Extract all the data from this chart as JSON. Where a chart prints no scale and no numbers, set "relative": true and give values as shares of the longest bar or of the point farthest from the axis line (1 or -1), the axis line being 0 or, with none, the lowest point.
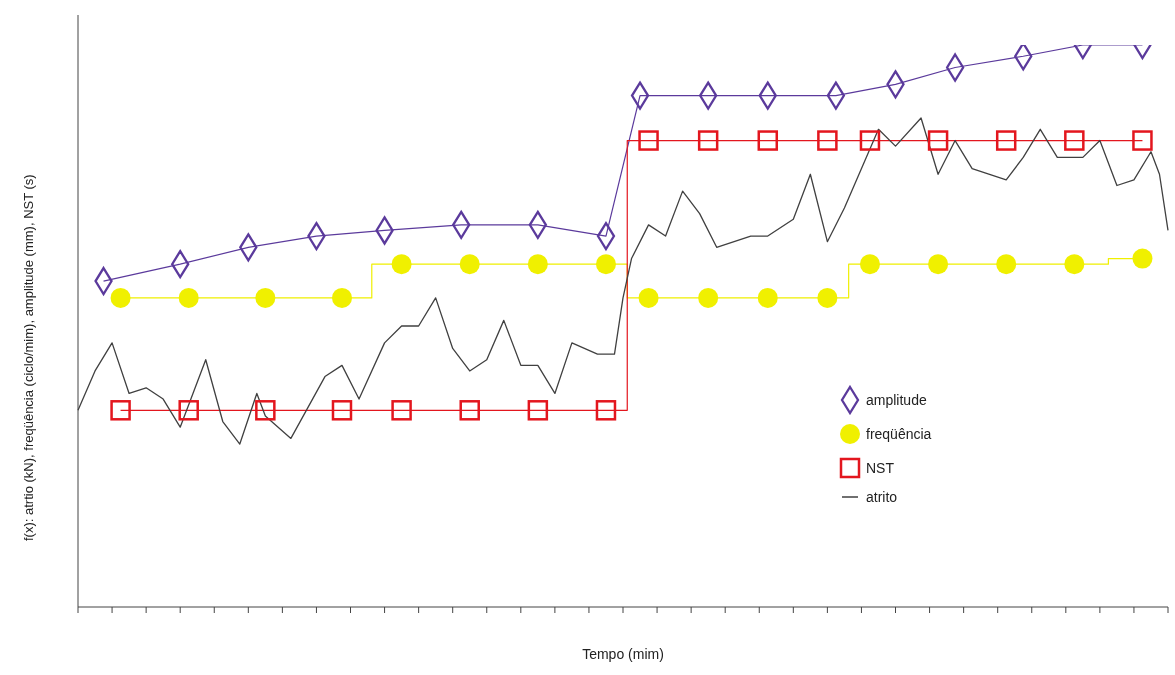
{
  "chart_data": {
    "type": "line",
    "relative": true,
    "xlabel": "Tempo (mim)",
    "ylabel": "f(x): atrtio (kN), freqüência (ciclo/mim), amplitude (mm), NST (s)",
    "legend": "right",
    "categories": [
      null,
      null,
      null,
      null,
      null,
      null,
      null,
      null,
      null,
      null,
      null,
      null,
      null,
      null,
      null,
      null,
      null,
      null,
      null,
      null,
      null,
      null,
      null,
      null,
      null,
      null,
      null,
      null,
      null,
      null,
      null,
      null,
      null,
      null,
      null,
      null,
      null,
      null,
      null,
      null,
      null,
      null,
      null,
      null,
      null,
      null,
      null,
      null,
      null,
      null,
      null,
      null,
      null,
      null,
      null,
      null,
      null,
      null,
      null,
      null,
      null,
      null,
      null,
      null,
      null,
      null,
      null,
      null,
      null,
      null,
      null,
      null,
      null,
      null,
      null,
      null,
      null,
      null,
      null,
      null,
      null,
      null,
      null,
      null,
      null,
      null,
      null,
      null,
      null,
      null,
      null,
      null,
      null,
      null,
      null,
      null,
      null,
      null,
      null,
      null,
      null,
      null,
      null,
      null,
      null,
      null,
      null,
      null,
      null,
      null,
      null,
      null,
      null,
      null,
      null,
      null,
      null,
      null,
      null,
      null,
      null,
      null,
      null,
      null,
      null,
      null,
      null,
      null,
      null
    ],
    "series": [
      {
        "name": "amplitude",
        "type": "line",
        "marker": "diamond",
        "color": "#5b3a9c",
        "values": [
          null,
          null,
          null,
          0.58,
          null,
          null,
          null,
          null,
          null,
          null,
          null,
          null,
          0.61,
          null,
          null,
          null,
          null,
          null,
          null,
          null,
          0.64,
          null,
          null,
          null,
          null,
          null,
          null,
          null,
          0.66,
          null,
          null,
          null,
          null,
          null,
          null,
          null,
          0.67,
          null,
          null,
          null,
          null,
          null,
          null,
          null,
          null,
          0.68,
          null,
          null,
          null,
          null,
          null,
          null,
          null,
          null,
          0.68,
          null,
          null,
          null,
          null,
          null,
          null,
          null,
          0.66,
          null,
          null,
          null,
          0.91,
          null,
          null,
          null,
          null,
          null,
          null,
          null,
          0.91,
          null,
          null,
          null,
          null,
          null,
          null,
          0.91,
          null,
          null,
          null,
          null,
          null,
          null,
          null,
          0.91,
          null,
          null,
          null,
          null,
          null,
          null,
          0.93,
          null,
          null,
          null,
          null,
          null,
          null,
          0.96,
          null,
          null,
          null,
          null,
          null,
          null,
          null,
          0.98,
          null,
          null,
          null,
          null,
          null,
          null,
          1,
          null,
          null,
          null,
          null,
          null,
          null,
          1,
          null,
          null,
          null
        ]
      },
      {
        "name": "freqüência",
        "type": "step",
        "marker": "circle",
        "color": "#f0f000",
        "values": [
          null,
          null,
          null,
          null,
          null,
          0.55,
          null,
          null,
          null,
          null,
          null,
          null,
          null,
          0.55,
          null,
          null,
          null,
          null,
          null,
          null,
          null,
          null,
          0.55,
          null,
          null,
          null,
          null,
          null,
          null,
          null,
          null,
          0.55,
          null,
          null,
          null,
          null,
          null,
          null,
          0.61,
          null,
          null,
          null,
          null,
          null,
          null,
          null,
          0.61,
          null,
          null,
          null,
          null,
          null,
          null,
          null,
          0.61,
          null,
          null,
          null,
          null,
          null,
          null,
          null,
          0.61,
          null,
          null,
          null,
          null,
          0.55,
          null,
          null,
          null,
          null,
          null,
          null,
          0.55,
          null,
          null,
          null,
          null,
          null,
          null,
          0.55,
          null,
          null,
          null,
          null,
          null,
          null,
          0.55,
          null,
          null,
          null,
          null,
          0.61,
          null,
          null,
          null,
          null,
          null,
          null,
          null,
          0.61,
          null,
          null,
          null,
          null,
          null,
          null,
          null,
          0.61,
          null,
          null,
          null,
          null,
          null,
          null,
          null,
          0.61,
          null,
          null,
          null,
          null,
          null,
          null,
          null,
          0.62,
          null,
          null,
          null
        ]
      },
      {
        "name": "NST",
        "type": "step",
        "marker": "square",
        "color": "#e3161e",
        "values": [
          null,
          null,
          null,
          null,
          null,
          0.35,
          null,
          null,
          null,
          null,
          null,
          null,
          null,
          0.35,
          null,
          null,
          null,
          null,
          null,
          null,
          null,
          null,
          0.35,
          null,
          null,
          null,
          null,
          null,
          null,
          null,
          null,
          0.35,
          null,
          null,
          null,
          null,
          null,
          null,
          0.35,
          null,
          null,
          null,
          null,
          null,
          null,
          null,
          0.35,
          null,
          null,
          null,
          null,
          null,
          null,
          null,
          0.35,
          null,
          null,
          null,
          null,
          null,
          null,
          null,
          0.35,
          null,
          null,
          null,
          null,
          0.83,
          null,
          null,
          null,
          null,
          null,
          null,
          0.83,
          null,
          null,
          null,
          null,
          null,
          null,
          0.83,
          null,
          null,
          null,
          null,
          null,
          null,
          0.83,
          null,
          null,
          null,
          null,
          0.83,
          null,
          null,
          null,
          null,
          null,
          null,
          null,
          0.83,
          null,
          null,
          null,
          null,
          null,
          null,
          null,
          0.83,
          null,
          null,
          null,
          null,
          null,
          null,
          null,
          0.83,
          null,
          null,
          null,
          null,
          null,
          null,
          null,
          0.83,
          null,
          null,
          null
        ]
      },
      {
        "name": "atrito",
        "type": "line",
        "marker": "none",
        "color": "#404040",
        "values": [
          0.35,
          null,
          0.42,
          null,
          0.47,
          null,
          0.38,
          null,
          0.39,
          null,
          0.37,
          null,
          0.32,
          null,
          null,
          0.44,
          null,
          0.33,
          null,
          0.29,
          null,
          0.38,
          0.34,
          null,
          null,
          0.3,
          null,
          null,
          null,
          0.41,
          null,
          0.43,
          null,
          0.37,
          null,
          null,
          0.47,
          null,
          0.5,
          null,
          0.5,
          null,
          0.55,
          null,
          0.46,
          null,
          0.42,
          null,
          0.44,
          null,
          0.51,
          null,
          0.43,
          null,
          0.43,
          null,
          0.38,
          null,
          0.47,
          null,
          null,
          0.45,
          null,
          0.45,
          0.55,
          0.62,
          null,
          0.68,
          null,
          0.66,
          null,
          0.74,
          null,
          0.7,
          null,
          0.64,
          null,
          null,
          null,
          0.66,
          null,
          0.66,
          null,
          null,
          0.69,
          null,
          0.77,
          null,
          0.65,
          null,
          0.71,
          null,
          null,
          null,
          0.85,
          null,
          0.82,
          null,
          null,
          0.87,
          null,
          0.77,
          null,
          0.83,
          null,
          0.78,
          null,
          null,
          null,
          0.76,
          null,
          0.8,
          null,
          0.85,
          null,
          0.8,
          null,
          null,
          0.8,
          null,
          0.83,
          null,
          0.75,
          null,
          0.76,
          null,
          0.81,
          0.77,
          0.67
        ]
      }
    ]
  }
}
